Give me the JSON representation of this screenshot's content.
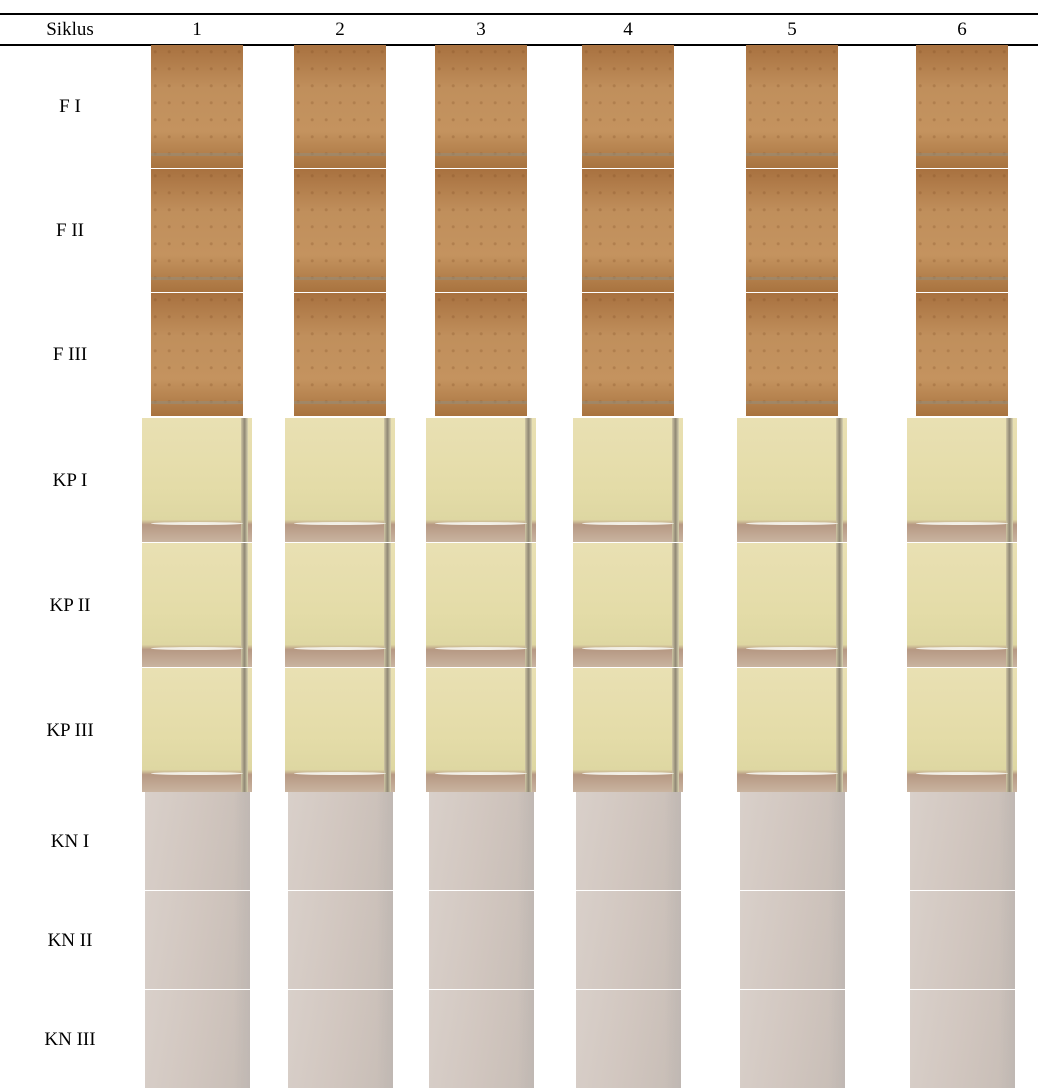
{
  "table": {
    "header": [
      "Siklus",
      "1",
      "2",
      "3",
      "4",
      "5",
      "6"
    ],
    "rows": [
      [
        "F I"
      ],
      [
        "F II"
      ],
      [
        "F III"
      ],
      [
        "KP I"
      ],
      [
        "KP II"
      ],
      [
        "KP III"
      ],
      [
        "KN I"
      ],
      [
        "KN II"
      ],
      [
        "KN III"
      ]
    ]
  }
}
